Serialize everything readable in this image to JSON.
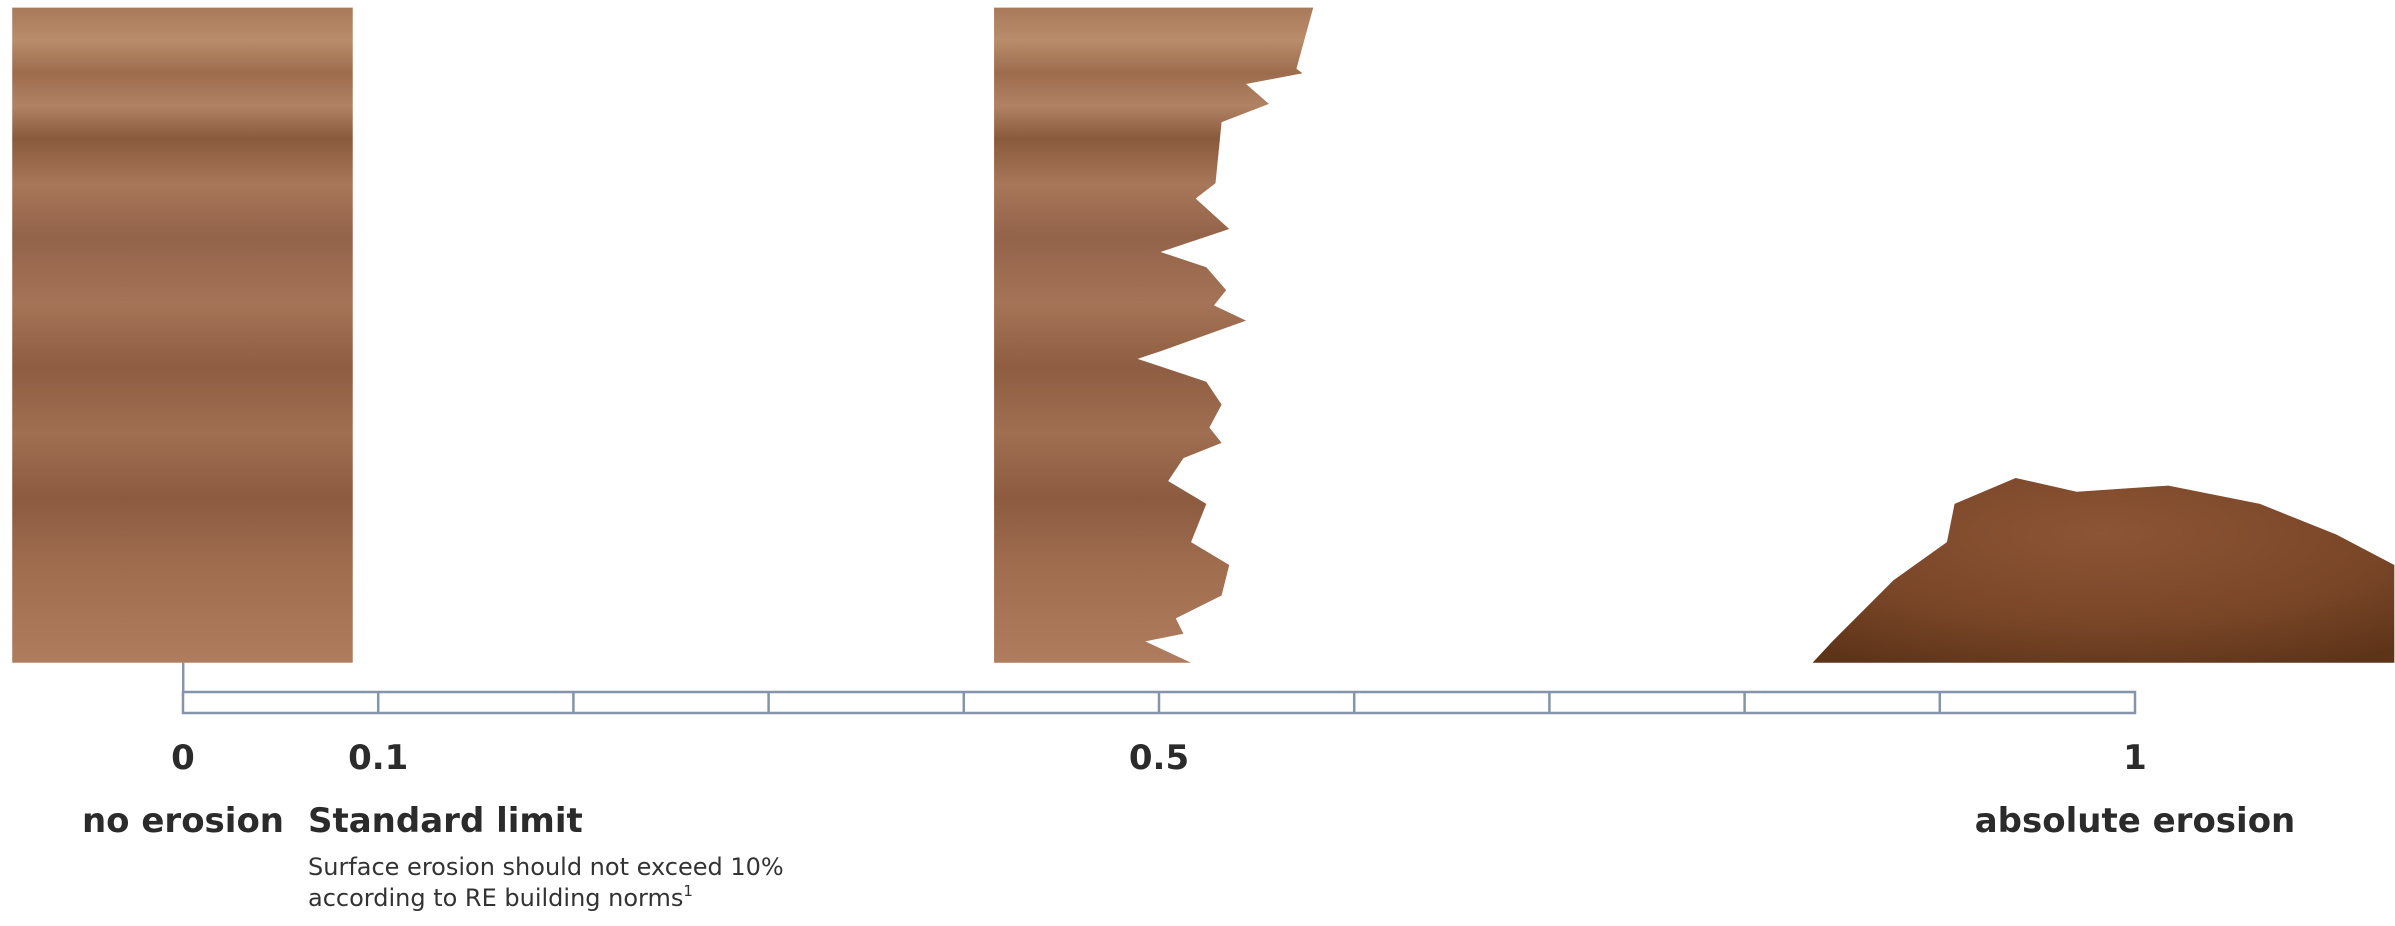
{
  "scale": {
    "min": 0,
    "max": 1,
    "ticks": [
      0,
      0.1,
      0.5,
      1
    ]
  },
  "labels": {
    "no_erosion": "no erosion",
    "standard_limit": "Standard limit",
    "absolute_erosion": "absolute erosion"
  },
  "note": {
    "line1": "Surface erosion should not exceed 10%",
    "line2": "according to RE building norms",
    "footnote": "1"
  }
}
